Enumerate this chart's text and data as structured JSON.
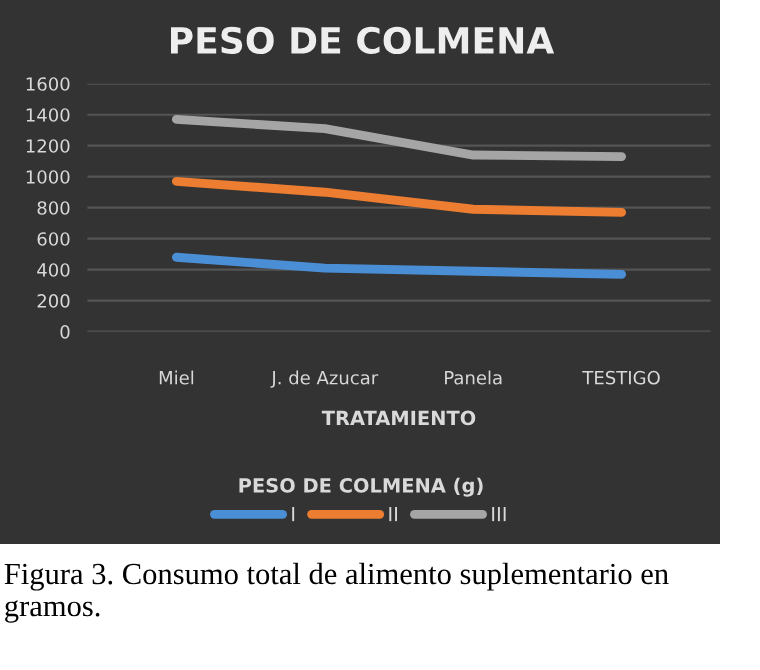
{
  "chart_data": {
    "type": "line",
    "title": "PESO DE COLMENA",
    "xlabel": "TRATAMIENTO",
    "legend_title": "PESO DE COLMENA (g)",
    "categories": [
      "Miel",
      "J. de Azucar",
      "Panela",
      "TESTIGO"
    ],
    "series": [
      {
        "name": "I",
        "color": "#4a8fd6",
        "values": [
          480,
          410,
          390,
          370
        ]
      },
      {
        "name": "II",
        "color": "#ed7d31",
        "values": [
          970,
          900,
          790,
          770
        ]
      },
      {
        "name": "III",
        "color": "#a5a5a5",
        "values": [
          1370,
          1310,
          1140,
          1130
        ]
      }
    ],
    "ylim": [
      0,
      1600
    ],
    "yticks": [
      0,
      200,
      400,
      600,
      800,
      1000,
      1200,
      1400,
      1600
    ],
    "grid": "y",
    "legend": "bottom",
    "marker": "none",
    "line_style": "solid",
    "annotations": [
      "Figura 3. Consumo total de alimento suplementario en gramos."
    ]
  }
}
